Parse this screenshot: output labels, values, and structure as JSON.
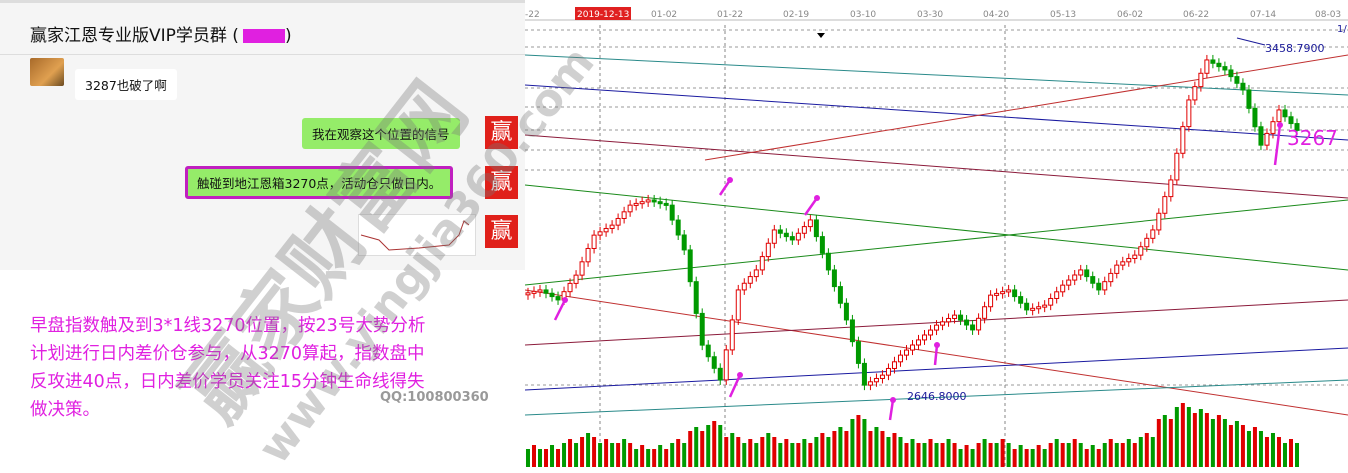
{
  "chat": {
    "title": "赢家江恩专业版VIP学员群 (",
    "title_close": ")",
    "messages": [
      {
        "side": "left",
        "text": "3287也破了啊"
      },
      {
        "side": "right",
        "text": "我在观察这个位置的信号"
      },
      {
        "side": "right",
        "text": "触碰到地江恩箱3270点，活动仓只做日内。",
        "highlighted": true
      },
      {
        "side": "right",
        "type": "image"
      }
    ],
    "avatar_char": "赢"
  },
  "note": {
    "lines": [
      "早盘指数触及到3*1线3270位置，按23号大势分析",
      "计划进行日内差价仓参与，从3270算起，指数盘中",
      "反攻进40点，日内差价学员关注15分钟生命线得失",
      "做决策。"
    ],
    "color": "#e020e0"
  },
  "qq": "QQ:100800360",
  "watermark": {
    "main": "赢家财富网",
    "url": "www.yingjia360.com"
  },
  "chart_data": {
    "type": "candlestick",
    "x_ticks": [
      "-22",
      "2019-12-13",
      "01-02",
      "01-22",
      "02-19",
      "03-10",
      "03-30",
      "04-20",
      "05-13",
      "06-02",
      "06-22",
      "07-14",
      "08-03"
    ],
    "highlight_date": "2019-12-13",
    "labels": {
      "high": "3458.7900",
      "low": "2646.8000",
      "current": "3267",
      "corner": "1/"
    },
    "closes": [
      2900,
      2877,
      2934,
      3026,
      3049,
      3095,
      3107,
      3095,
      2992,
      2773,
      2693,
      2900,
      2946,
      3038,
      3015,
      3061,
      2946,
      2831,
      2681,
      2704,
      2750,
      2785,
      2819,
      2842,
      2808,
      2888,
      2900,
      2854,
      2865,
      2911,
      2946,
      2900,
      2957,
      2980,
      3038,
      3153,
      3337,
      3429,
      3406,
      3360,
      3233,
      3314,
      3267
    ],
    "volumes": [
      3,
      3,
      4,
      5,
      4,
      4,
      3,
      3,
      4,
      6,
      7,
      5,
      4,
      5,
      4,
      4,
      5,
      6,
      8,
      6,
      5,
      4,
      4,
      4,
      3,
      4,
      4,
      3,
      3,
      4,
      4,
      3,
      4,
      4,
      5,
      8,
      10,
      9,
      8,
      7,
      6,
      5,
      4
    ],
    "colors": {
      "up": "#e00000",
      "down": "#009900",
      "current_label": "#e020e0",
      "price_label": "#1a1a99"
    }
  }
}
